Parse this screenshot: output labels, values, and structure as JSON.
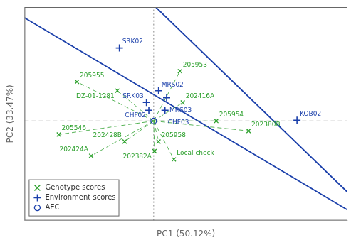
{
  "chart_data": {
    "type": "scatter",
    "xlabel": "PC1 (50.12%)",
    "ylabel": "PC2 (33.47%)",
    "xlim": [
      -3.2,
      4.8
    ],
    "ylim": [
      -2.8,
      3.2
    ],
    "tick_labels": false,
    "grid": false,
    "legend": "lower left",
    "series": [
      {
        "name": "Genotype scores",
        "color": "#2ca02c",
        "marker": "x",
        "line_style": "dashed",
        "labels": [
          "205953",
          "205955",
          "DZ-01-1281",
          "202416A",
          "205954",
          "202380B",
          "205546",
          "202428B",
          "205958",
          "202382A",
          "202424A",
          "Local check"
        ],
        "x": [
          0.65,
          -1.9,
          -0.9,
          0.72,
          1.55,
          2.35,
          -2.35,
          -0.72,
          0.12,
          0.02,
          -1.55,
          0.5
        ],
        "y": [
          1.4,
          1.1,
          0.85,
          0.52,
          0.0,
          -0.28,
          -0.38,
          -0.58,
          -0.58,
          -0.85,
          -0.98,
          -1.08
        ]
      },
      {
        "name": "Environment scores",
        "color": "#1a3faa",
        "marker": "+",
        "labels": [
          "SRK02",
          "MRS02",
          "MRS03",
          "SRK03",
          "CHF02",
          "CHF03",
          "KOB02"
        ],
        "x": [
          -0.85,
          0.12,
          0.32,
          -0.18,
          -0.12,
          0.28,
          3.55
        ],
        "y": [
          2.05,
          0.85,
          0.65,
          0.52,
          0.3,
          0.3,
          0.02
        ]
      },
      {
        "name": "AEC",
        "color": "#1a3faa",
        "marker": "o",
        "x": [
          0
        ],
        "y": [
          0
        ]
      }
    ],
    "lines": [
      {
        "x": [
          -3.2,
          4.8
        ],
        "y": [
          2.9,
          -2.5
        ],
        "color": "#1a3faa",
        "line_style": "solid"
      },
      {
        "x": [
          0.05,
          4.8
        ],
        "y": [
          3.2,
          -2.0
        ],
        "color": "#1a3faa",
        "line_style": "solid"
      }
    ],
    "hlines": [
      {
        "y": 0,
        "color": "#888888",
        "line_style": "dashed"
      }
    ],
    "vlines": [
      {
        "x": 0,
        "color": "#888888",
        "line_style": "dotted"
      }
    ]
  }
}
